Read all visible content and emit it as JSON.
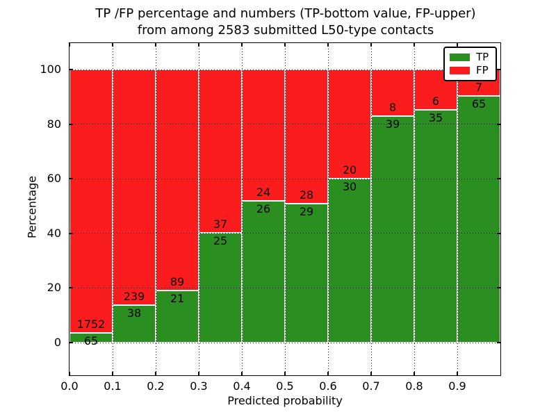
{
  "figure": {
    "title_line1": "TP /FP percentage and numbers (TP-bottom value, FP-upper)",
    "title_line2": "from among 2583 submitted L50-type contacts"
  },
  "chart_data": {
    "type": "bar",
    "stacked": true,
    "title": "TP /FP percentage and numbers (TP-bottom value, FP-upper)\nfrom among 2583 submitted L50-type contacts",
    "xlabel": "Predicted probability",
    "ylabel": "Percentage",
    "total_submitted": 2583,
    "xlim": [
      0.0,
      1.0
    ],
    "ylim": [
      -12,
      110
    ],
    "grid": true,
    "grid_style": "dotted",
    "x_ticks": [
      {
        "value": 0.0,
        "label": "0.0"
      },
      {
        "value": 0.1,
        "label": "0.1"
      },
      {
        "value": 0.2,
        "label": "0.2"
      },
      {
        "value": 0.3,
        "label": "0.3"
      },
      {
        "value": 0.4,
        "label": "0.4"
      },
      {
        "value": 0.5,
        "label": "0.5"
      },
      {
        "value": 0.6,
        "label": "0.6"
      },
      {
        "value": 0.7,
        "label": "0.7"
      },
      {
        "value": 0.8,
        "label": "0.8"
      },
      {
        "value": 0.9,
        "label": "0.9"
      }
    ],
    "y_ticks": [
      {
        "value": 0,
        "label": "0"
      },
      {
        "value": 20,
        "label": "20"
      },
      {
        "value": 40,
        "label": "40"
      },
      {
        "value": 60,
        "label": "60"
      },
      {
        "value": 80,
        "label": "80"
      },
      {
        "value": 100,
        "label": "100"
      }
    ],
    "bar_width": 0.1,
    "bins": [
      {
        "x_start": 0.0,
        "x_end": 0.1,
        "tp_count": 65,
        "fp_count": 1752
      },
      {
        "x_start": 0.1,
        "x_end": 0.2,
        "tp_count": 38,
        "fp_count": 239
      },
      {
        "x_start": 0.2,
        "x_end": 0.3,
        "tp_count": 21,
        "fp_count": 89
      },
      {
        "x_start": 0.3,
        "x_end": 0.4,
        "tp_count": 25,
        "fp_count": 37
      },
      {
        "x_start": 0.4,
        "x_end": 0.5,
        "tp_count": 26,
        "fp_count": 24
      },
      {
        "x_start": 0.5,
        "x_end": 0.6,
        "tp_count": 29,
        "fp_count": 28
      },
      {
        "x_start": 0.6,
        "x_end": 0.7,
        "tp_count": 30,
        "fp_count": 20
      },
      {
        "x_start": 0.7,
        "x_end": 0.8,
        "tp_count": 39,
        "fp_count": 8
      },
      {
        "x_start": 0.8,
        "x_end": 0.9,
        "tp_count": 35,
        "fp_count": 6
      },
      {
        "x_start": 0.9,
        "x_end": 1.0,
        "tp_count": 65,
        "fp_count": 7
      }
    ],
    "legend": {
      "position": "upper right",
      "items": [
        {
          "label": "TP",
          "color": "#2b8e20"
        },
        {
          "label": "FP",
          "color": "#fb1d1d"
        }
      ]
    },
    "colors": {
      "tp": "#2b8e20",
      "fp": "#fb1d1d",
      "axis": "#000000",
      "background": "#ffffff",
      "bar_edge": "#ffffff"
    }
  }
}
